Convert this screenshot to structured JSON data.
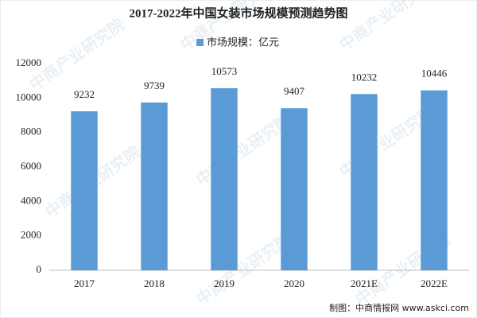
{
  "chart_data": {
    "type": "bar",
    "title": "2017-2022年中国女装市场规模预测趋势图",
    "legend": "市场规模：亿元",
    "categories": [
      "2017",
      "2018",
      "2019",
      "2020",
      "2021E",
      "2022E"
    ],
    "values": [
      9232,
      9739,
      10573,
      9407,
      10232,
      10446
    ],
    "color": "#5b9bd5",
    "ylim": [
      0,
      12000
    ],
    "yticks": [
      0,
      2000,
      4000,
      6000,
      8000,
      10000,
      12000
    ],
    "grid": false,
    "source": "制图：中商情报网 www.askci.com",
    "watermark": "中商产业研究院"
  }
}
